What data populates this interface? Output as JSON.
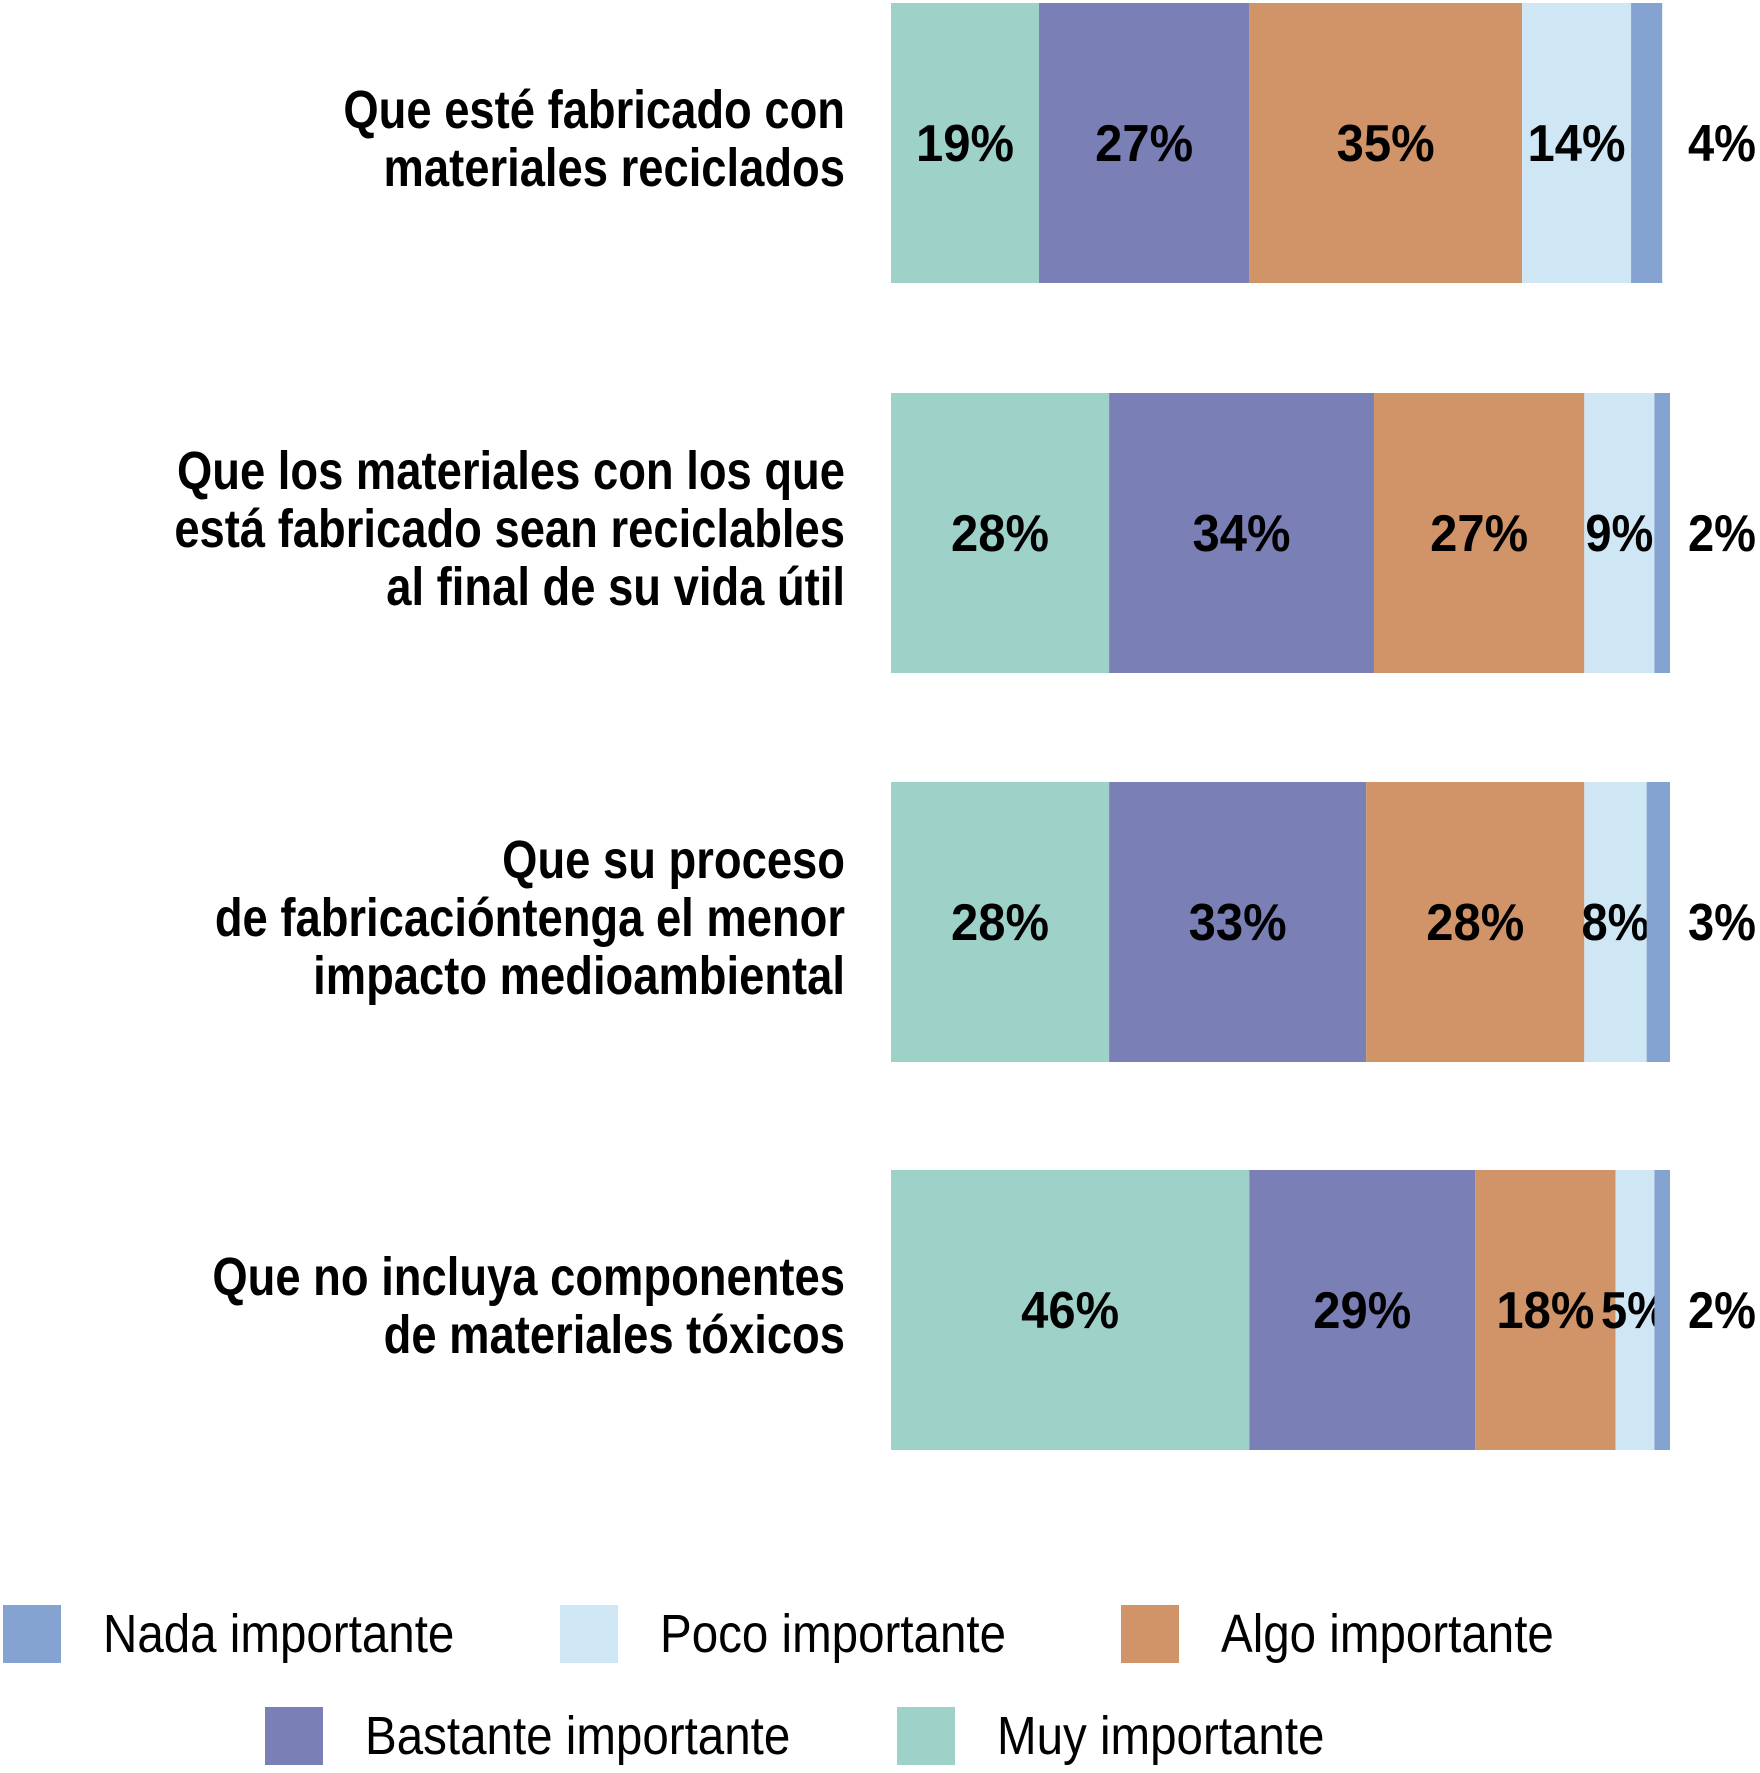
{
  "chart_data": {
    "type": "bar",
    "orientation": "horizontal",
    "stacked": true,
    "unit": "%",
    "categories": [
      [
        "Que esté fabricado con",
        "materiales reciclados"
      ],
      [
        "Que los materiales con los que",
        "está fabricado sean reciclables",
        "al final de su vida útil"
      ],
      [
        "Que su proceso",
        "de fabricacióntenga el menor",
        "impacto medioambiental"
      ],
      [
        "Que no incluya componentes",
        "de materiales tóxicos"
      ]
    ],
    "series": [
      {
        "name": "Muy importante",
        "color": "#9ed1c8",
        "values": [
          19,
          28,
          28,
          46
        ]
      },
      {
        "name": "Bastante importante",
        "color": "#7a7fb6",
        "values": [
          27,
          34,
          33,
          29
        ]
      },
      {
        "name": "Algo importante",
        "color": "#d19368",
        "values": [
          35,
          27,
          28,
          18
        ]
      },
      {
        "name": "Poco importante",
        "color": "#cfe6f5",
        "values": [
          14,
          9,
          8,
          5
        ]
      },
      {
        "name": "Nada importante",
        "color": "#85a3d1",
        "values": [
          4,
          2,
          3,
          2
        ]
      }
    ],
    "xlim": [
      0,
      100
    ],
    "grid": false,
    "legend_position": "bottom",
    "legend_order": [
      "Nada importante",
      "Poco importante",
      "Algo importante",
      "Bastante importante",
      "Muy importante"
    ]
  }
}
